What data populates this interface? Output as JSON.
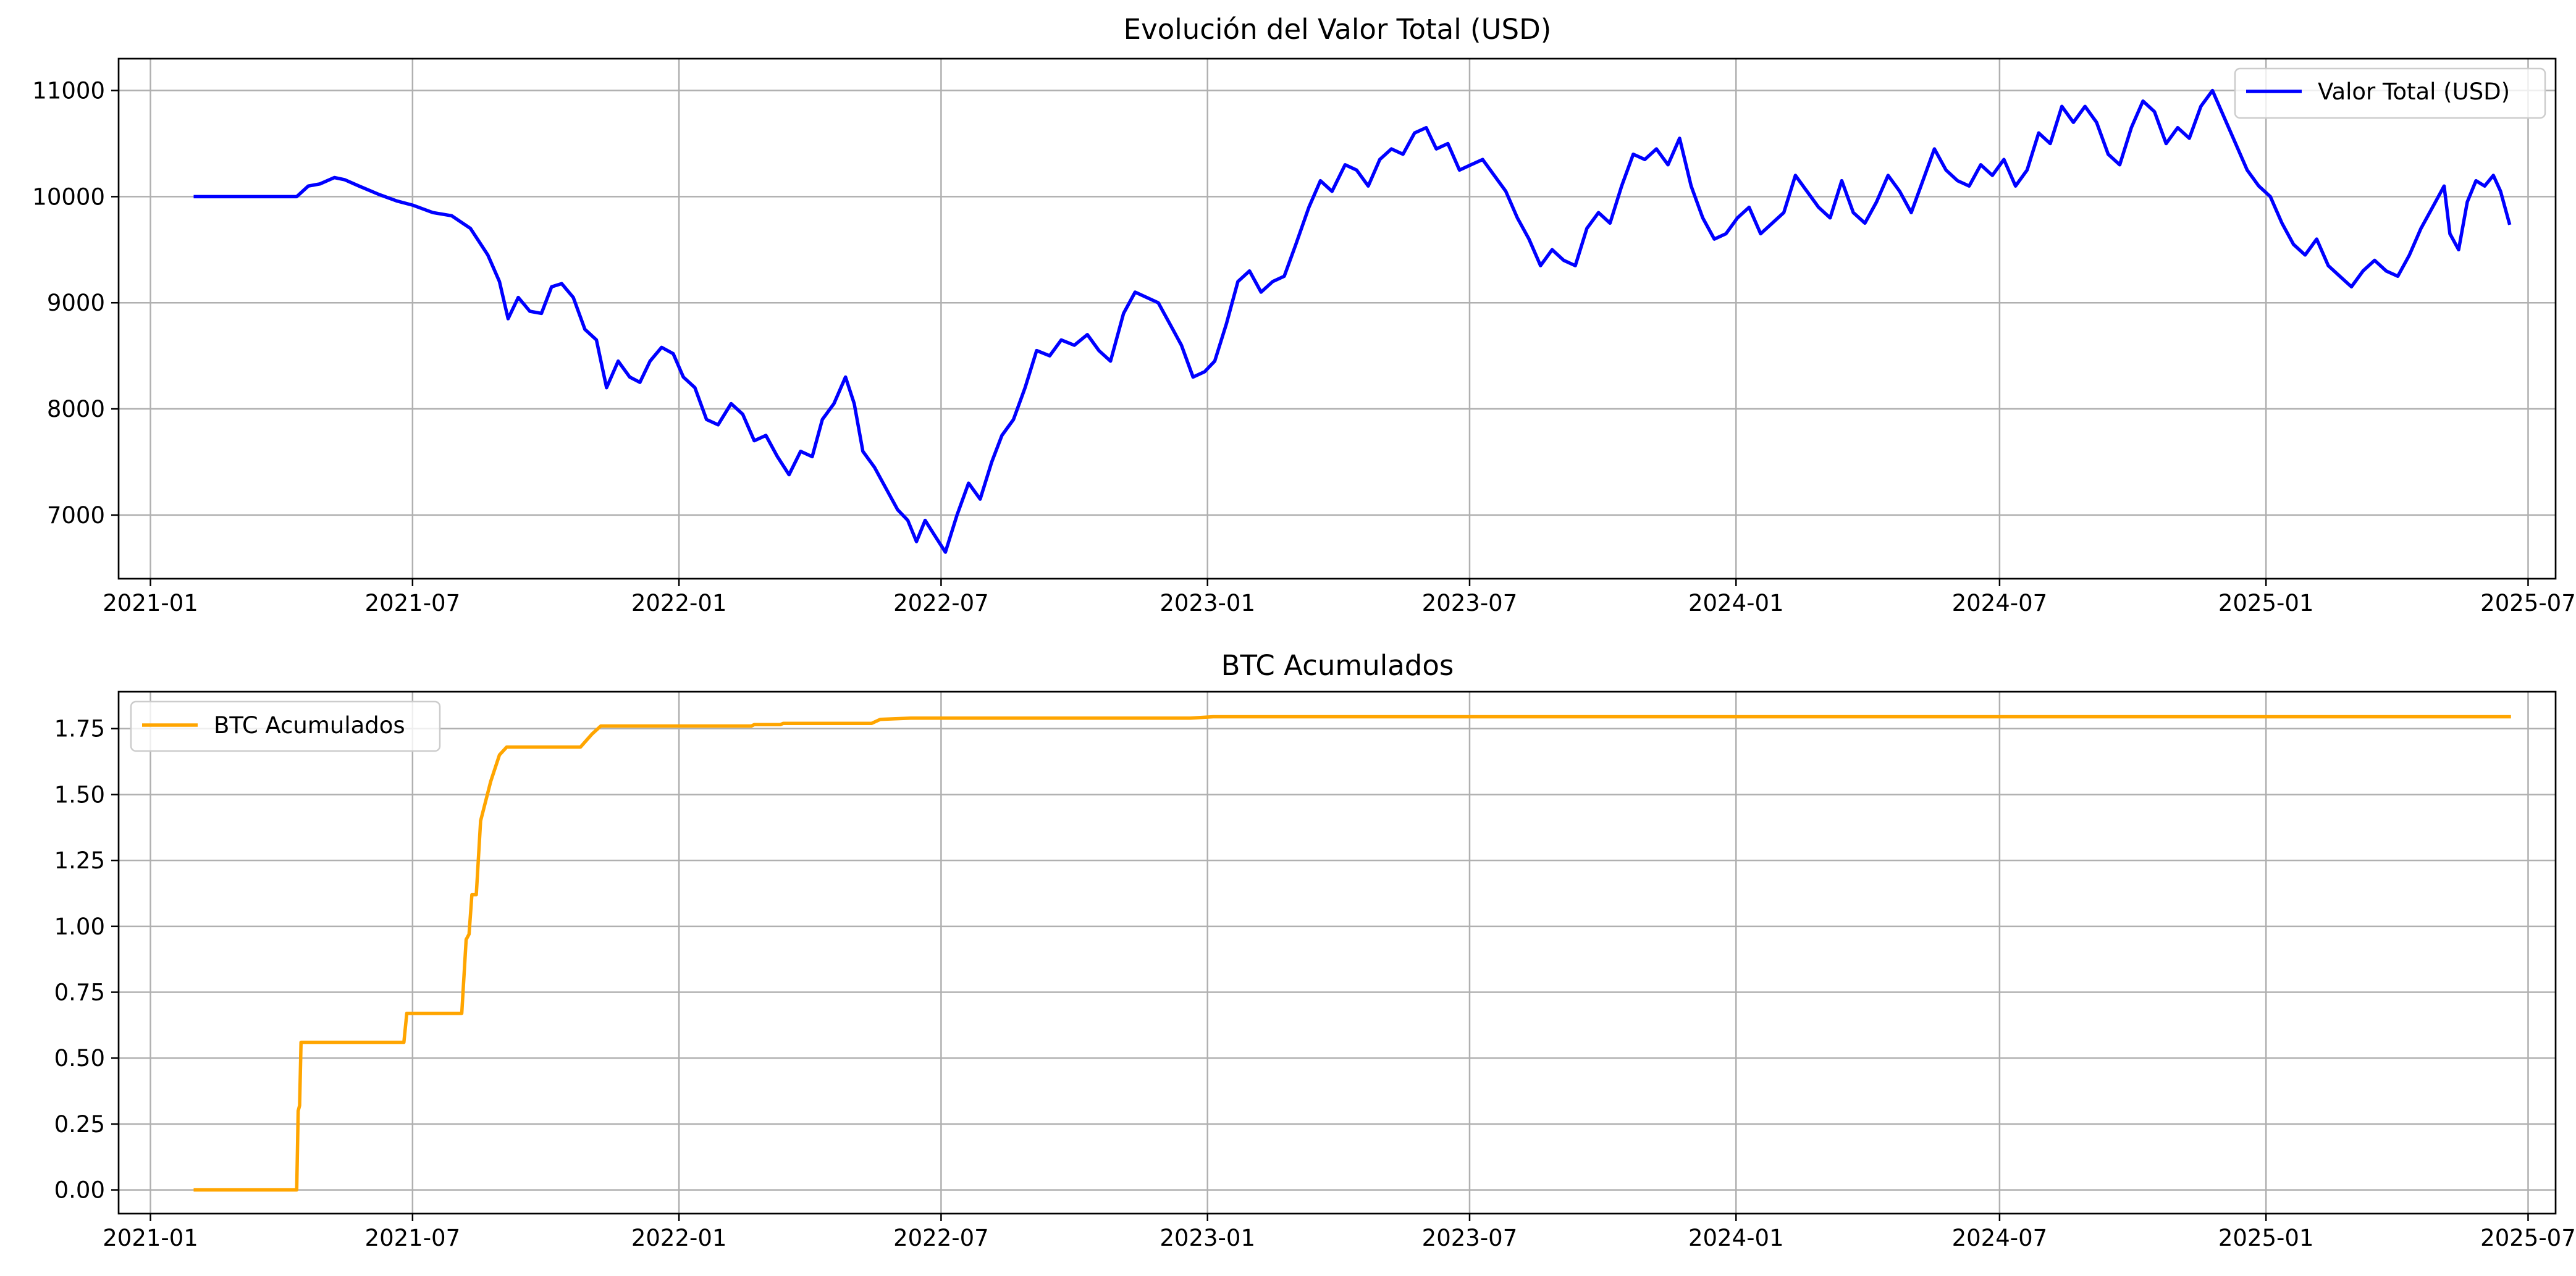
{
  "chart_data": [
    {
      "type": "line",
      "title": "Evolución del Valor Total (USD)",
      "xlabel": "",
      "ylabel": "",
      "x_ticks": [
        "2021-01",
        "2021-07",
        "2022-01",
        "2022-07",
        "2023-01",
        "2023-07",
        "2024-01",
        "2024-07",
        "2025-01",
        "2025-07"
      ],
      "y_ticks": [
        "7000",
        "8000",
        "9000",
        "10000",
        "11000"
      ],
      "xlim": [
        "2020-12-10",
        "2025-07-20"
      ],
      "ylim": [
        6400,
        11300
      ],
      "grid": true,
      "legend": "top-right",
      "series": [
        {
          "name": "Valor Total (USD)",
          "color": "#0000ff",
          "points": [
            [
              "2021-02-01",
              10000
            ],
            [
              "2021-04-12",
              10000
            ],
            [
              "2021-04-20",
              10100
            ],
            [
              "2021-04-28",
              10120
            ],
            [
              "2021-05-08",
              10180
            ],
            [
              "2021-05-15",
              10160
            ],
            [
              "2021-05-25",
              10100
            ],
            [
              "2021-06-08",
              10020
            ],
            [
              "2021-06-20",
              9960
            ],
            [
              "2021-07-01",
              9920
            ],
            [
              "2021-07-15",
              9850
            ],
            [
              "2021-07-28",
              9820
            ],
            [
              "2021-08-10",
              9700
            ],
            [
              "2021-08-22",
              9450
            ],
            [
              "2021-08-30",
              9200
            ],
            [
              "2021-09-05",
              8850
            ],
            [
              "2021-09-12",
              9050
            ],
            [
              "2021-09-20",
              8920
            ],
            [
              "2021-09-28",
              8900
            ],
            [
              "2021-10-05",
              9150
            ],
            [
              "2021-10-12",
              9180
            ],
            [
              "2021-10-20",
              9050
            ],
            [
              "2021-10-28",
              8750
            ],
            [
              "2021-11-05",
              8650
            ],
            [
              "2021-11-12",
              8200
            ],
            [
              "2021-11-20",
              8450
            ],
            [
              "2021-11-28",
              8300
            ],
            [
              "2021-12-05",
              8250
            ],
            [
              "2021-12-12",
              8450
            ],
            [
              "2021-12-20",
              8580
            ],
            [
              "2021-12-28",
              8520
            ],
            [
              "2022-01-04",
              8300
            ],
            [
              "2022-01-12",
              8200
            ],
            [
              "2022-01-20",
              7900
            ],
            [
              "2022-01-28",
              7850
            ],
            [
              "2022-02-06",
              8050
            ],
            [
              "2022-02-14",
              7950
            ],
            [
              "2022-02-22",
              7700
            ],
            [
              "2022-03-02",
              7750
            ],
            [
              "2022-03-10",
              7550
            ],
            [
              "2022-03-18",
              7380
            ],
            [
              "2022-03-26",
              7600
            ],
            [
              "2022-04-03",
              7550
            ],
            [
              "2022-04-10",
              7900
            ],
            [
              "2022-04-18",
              8050
            ],
            [
              "2022-04-26",
              8300
            ],
            [
              "2022-05-02",
              8050
            ],
            [
              "2022-05-08",
              7600
            ],
            [
              "2022-05-16",
              7450
            ],
            [
              "2022-05-24",
              7250
            ],
            [
              "2022-06-01",
              7050
            ],
            [
              "2022-06-08",
              6950
            ],
            [
              "2022-06-14",
              6750
            ],
            [
              "2022-06-20",
              6950
            ],
            [
              "2022-06-26",
              6820
            ],
            [
              "2022-07-04",
              6650
            ],
            [
              "2022-07-12",
              7000
            ],
            [
              "2022-07-20",
              7300
            ],
            [
              "2022-07-28",
              7150
            ],
            [
              "2022-08-05",
              7500
            ],
            [
              "2022-08-12",
              7750
            ],
            [
              "2022-08-20",
              7900
            ],
            [
              "2022-08-28",
              8200
            ],
            [
              "2022-09-05",
              8550
            ],
            [
              "2022-09-14",
              8500
            ],
            [
              "2022-09-22",
              8650
            ],
            [
              "2022-10-01",
              8600
            ],
            [
              "2022-10-10",
              8700
            ],
            [
              "2022-10-18",
              8550
            ],
            [
              "2022-10-26",
              8450
            ],
            [
              "2022-11-04",
              8900
            ],
            [
              "2022-11-12",
              9100
            ],
            [
              "2022-11-20",
              9050
            ],
            [
              "2022-11-28",
              9000
            ],
            [
              "2022-12-06",
              8800
            ],
            [
              "2022-12-14",
              8600
            ],
            [
              "2022-12-22",
              8300
            ],
            [
              "2022-12-30",
              8350
            ],
            [
              "2023-01-06",
              8450
            ],
            [
              "2023-01-14",
              8800
            ],
            [
              "2023-01-22",
              9200
            ],
            [
              "2023-01-30",
              9300
            ],
            [
              "2023-02-07",
              9100
            ],
            [
              "2023-02-15",
              9200
            ],
            [
              "2023-02-23",
              9250
            ],
            [
              "2023-03-03",
              9550
            ],
            [
              "2023-03-12",
              9900
            ],
            [
              "2023-03-20",
              10150
            ],
            [
              "2023-03-28",
              10050
            ],
            [
              "2023-04-06",
              10300
            ],
            [
              "2023-04-14",
              10250
            ],
            [
              "2023-04-22",
              10100
            ],
            [
              "2023-04-30",
              10350
            ],
            [
              "2023-05-08",
              10450
            ],
            [
              "2023-05-16",
              10400
            ],
            [
              "2023-05-24",
              10600
            ],
            [
              "2023-06-01",
              10650
            ],
            [
              "2023-06-08",
              10450
            ],
            [
              "2023-06-16",
              10500
            ],
            [
              "2023-06-24",
              10250
            ],
            [
              "2023-07-02",
              10300
            ],
            [
              "2023-07-10",
              10350
            ],
            [
              "2023-07-18",
              10200
            ],
            [
              "2023-07-26",
              10050
            ],
            [
              "2023-08-03",
              9800
            ],
            [
              "2023-08-11",
              9600
            ],
            [
              "2023-08-19",
              9350
            ],
            [
              "2023-08-27",
              9500
            ],
            [
              "2023-09-04",
              9400
            ],
            [
              "2023-09-12",
              9350
            ],
            [
              "2023-09-20",
              9700
            ],
            [
              "2023-09-28",
              9850
            ],
            [
              "2023-10-06",
              9750
            ],
            [
              "2023-10-14",
              10100
            ],
            [
              "2023-10-22",
              10400
            ],
            [
              "2023-10-30",
              10350
            ],
            [
              "2023-11-07",
              10450
            ],
            [
              "2023-11-15",
              10300
            ],
            [
              "2023-11-23",
              10550
            ],
            [
              "2023-12-01",
              10100
            ],
            [
              "2023-12-09",
              9800
            ],
            [
              "2023-12-17",
              9600
            ],
            [
              "2023-12-25",
              9650
            ],
            [
              "2024-01-02",
              9800
            ],
            [
              "2024-01-10",
              9900
            ],
            [
              "2024-01-18",
              9650
            ],
            [
              "2024-01-26",
              9750
            ],
            [
              "2024-02-03",
              9850
            ],
            [
              "2024-02-11",
              10200
            ],
            [
              "2024-02-19",
              10050
            ],
            [
              "2024-02-27",
              9900
            ],
            [
              "2024-03-06",
              9800
            ],
            [
              "2024-03-14",
              10150
            ],
            [
              "2024-03-22",
              9850
            ],
            [
              "2024-03-30",
              9750
            ],
            [
              "2024-04-07",
              9950
            ],
            [
              "2024-04-15",
              10200
            ],
            [
              "2024-04-23",
              10050
            ],
            [
              "2024-05-01",
              9850
            ],
            [
              "2024-05-09",
              10150
            ],
            [
              "2024-05-17",
              10450
            ],
            [
              "2024-05-25",
              10250
            ],
            [
              "2024-06-02",
              10150
            ],
            [
              "2024-06-10",
              10100
            ],
            [
              "2024-06-18",
              10300
            ],
            [
              "2024-06-26",
              10200
            ],
            [
              "2024-07-04",
              10350
            ],
            [
              "2024-07-12",
              10100
            ],
            [
              "2024-07-20",
              10250
            ],
            [
              "2024-07-28",
              10600
            ],
            [
              "2024-08-05",
              10500
            ],
            [
              "2024-08-13",
              10850
            ],
            [
              "2024-08-21",
              10700
            ],
            [
              "2024-08-29",
              10850
            ],
            [
              "2024-09-06",
              10700
            ],
            [
              "2024-09-14",
              10400
            ],
            [
              "2024-09-22",
              10300
            ],
            [
              "2024-09-30",
              10650
            ],
            [
              "2024-10-08",
              10900
            ],
            [
              "2024-10-16",
              10800
            ],
            [
              "2024-10-24",
              10500
            ],
            [
              "2024-11-01",
              10650
            ],
            [
              "2024-11-09",
              10550
            ],
            [
              "2024-11-17",
              10850
            ],
            [
              "2024-11-25",
              11000
            ],
            [
              "2024-12-03",
              10750
            ],
            [
              "2024-12-11",
              10500
            ],
            [
              "2024-12-19",
              10250
            ],
            [
              "2024-12-27",
              10100
            ],
            [
              "2025-01-04",
              10000
            ],
            [
              "2025-01-12",
              9750
            ],
            [
              "2025-01-20",
              9550
            ],
            [
              "2025-01-28",
              9450
            ],
            [
              "2025-02-05",
              9600
            ],
            [
              "2025-02-13",
              9350
            ],
            [
              "2025-02-21",
              9250
            ],
            [
              "2025-03-01",
              9150
            ],
            [
              "2025-03-09",
              9300
            ],
            [
              "2025-03-17",
              9400
            ],
            [
              "2025-03-25",
              9300
            ],
            [
              "2025-04-02",
              9250
            ],
            [
              "2025-04-10",
              9450
            ],
            [
              "2025-04-18",
              9700
            ],
            [
              "2025-04-26",
              9900
            ],
            [
              "2025-05-04",
              10100
            ],
            [
              "2025-05-08",
              9650
            ],
            [
              "2025-05-14",
              9500
            ],
            [
              "2025-05-20",
              9950
            ],
            [
              "2025-05-26",
              10150
            ],
            [
              "2025-06-01",
              10100
            ],
            [
              "2025-06-07",
              10200
            ],
            [
              "2025-06-12",
              10050
            ],
            [
              "2025-06-18",
              9750
            ]
          ]
        }
      ]
    },
    {
      "type": "line",
      "title": "BTC Acumulados",
      "xlabel": "",
      "ylabel": "",
      "x_ticks": [
        "2021-01",
        "2021-07",
        "2022-01",
        "2022-07",
        "2023-01",
        "2023-07",
        "2024-01",
        "2024-07",
        "2025-01",
        "2025-07"
      ],
      "y_ticks": [
        "0.00",
        "0.25",
        "0.50",
        "0.75",
        "1.00",
        "1.25",
        "1.50",
        "1.75"
      ],
      "xlim": [
        "2020-12-10",
        "2025-07-20"
      ],
      "ylim": [
        -0.09,
        1.89
      ],
      "grid": true,
      "legend": "top-left",
      "series": [
        {
          "name": "BTC Acumulados",
          "color": "#ffa500",
          "points": [
            [
              "2021-02-01",
              0.0
            ],
            [
              "2021-04-12",
              0.0
            ],
            [
              "2021-04-13",
              0.3
            ],
            [
              "2021-04-14",
              0.32
            ],
            [
              "2021-04-15",
              0.56
            ],
            [
              "2021-06-25",
              0.56
            ],
            [
              "2021-06-27",
              0.67
            ],
            [
              "2021-08-04",
              0.67
            ],
            [
              "2021-08-07",
              0.95
            ],
            [
              "2021-08-09",
              0.97
            ],
            [
              "2021-08-11",
              1.12
            ],
            [
              "2021-08-14",
              1.12
            ],
            [
              "2021-08-17",
              1.4
            ],
            [
              "2021-08-24",
              1.55
            ],
            [
              "2021-08-30",
              1.65
            ],
            [
              "2021-09-04",
              1.68
            ],
            [
              "2021-10-25",
              1.68
            ],
            [
              "2021-11-02",
              1.73
            ],
            [
              "2021-11-08",
              1.76
            ],
            [
              "2022-02-20",
              1.76
            ],
            [
              "2022-02-22",
              1.765
            ],
            [
              "2022-03-12",
              1.765
            ],
            [
              "2022-03-14",
              1.77
            ],
            [
              "2022-05-14",
              1.77
            ],
            [
              "2022-05-20",
              1.785
            ],
            [
              "2022-06-10",
              1.79
            ],
            [
              "2022-12-20",
              1.79
            ],
            [
              "2023-01-05",
              1.795
            ],
            [
              "2025-06-18",
              1.795
            ]
          ]
        }
      ]
    }
  ]
}
